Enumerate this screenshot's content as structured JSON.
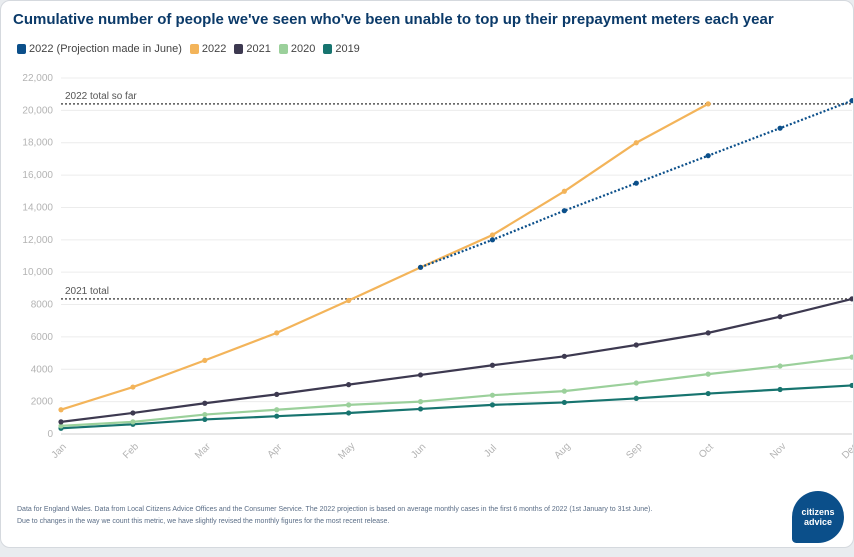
{
  "chart_data": {
    "type": "line",
    "title": "Cumulative number of people we've seen who've been unable to top up their prepayment meters each year",
    "categories": [
      "Jan",
      "Feb",
      "Mar",
      "Apr",
      "May",
      "Jun",
      "Jul",
      "Aug",
      "Sep",
      "Oct",
      "Nov",
      "Dec"
    ],
    "ylim": [
      0,
      22000
    ],
    "yticks": [
      "0",
      "2000",
      "4000",
      "6000",
      "8000",
      "10,000",
      "12,000",
      "14,000",
      "16,000",
      "18,000",
      "20,000",
      "22,000"
    ],
    "ytick_values": [
      0,
      2000,
      4000,
      6000,
      8000,
      10000,
      12000,
      14000,
      16000,
      18000,
      20000,
      22000
    ],
    "grid": true,
    "legend_position": "top-left",
    "series": [
      {
        "name": "2022 (Projection made in June)",
        "color": "#0b4f8a",
        "dashed": true,
        "values": [
          null,
          null,
          null,
          null,
          null,
          10300,
          12000,
          13800,
          15500,
          17200,
          18900,
          20600
        ]
      },
      {
        "name": "2022",
        "color": "#f3b45a",
        "dashed": false,
        "values": [
          1500,
          2900,
          4550,
          6250,
          8250,
          10300,
          12300,
          15000,
          18000,
          20400,
          null,
          null
        ]
      },
      {
        "name": "2021",
        "color": "#3d3950",
        "dashed": false,
        "values": [
          750,
          1300,
          1900,
          2450,
          3050,
          3650,
          4250,
          4800,
          5500,
          6250,
          7250,
          8350
        ]
      },
      {
        "name": "2020",
        "color": "#9bd09b",
        "dashed": false,
        "values": [
          500,
          750,
          1200,
          1500,
          1800,
          2000,
          2400,
          2650,
          3150,
          3700,
          4200,
          4750
        ]
      },
      {
        "name": "2019",
        "color": "#17746f",
        "dashed": false,
        "values": [
          350,
          600,
          900,
          1100,
          1300,
          1550,
          1800,
          1950,
          2200,
          2500,
          2750,
          3000
        ]
      }
    ],
    "annotations": [
      {
        "label": "2022 total so far",
        "value": 20400
      },
      {
        "label": "2021 total",
        "value": 8350
      }
    ]
  },
  "footer": {
    "line1": "Data for England Wales. Data from Local Citizens Advice Offices and the Consumer Service. The 2022 projection is based on average monthly cases in the first 6 months of 2022 (1st January to 31st June).",
    "line2": "Due to changes in the way we count this metric, we have slightly revised the monthly figures for the most recent release."
  },
  "logo": {
    "line1": "citizens",
    "line2": "advice"
  }
}
